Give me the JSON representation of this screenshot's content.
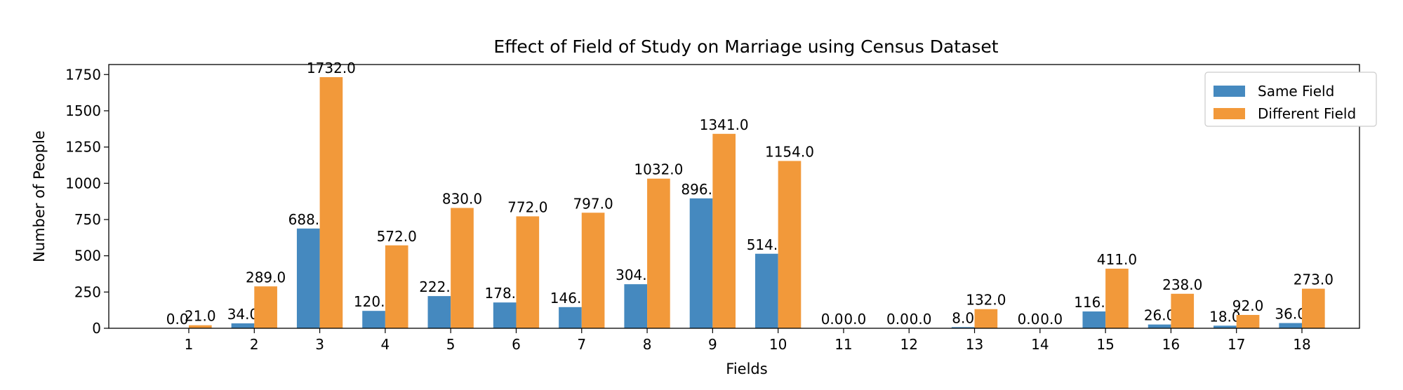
{
  "chart_data": {
    "type": "bar",
    "title": "Effect of Field of Study on Marriage using Census Dataset",
    "xlabel": "Fields",
    "ylabel": "Number of People",
    "categories": [
      "1",
      "2",
      "3",
      "4",
      "5",
      "6",
      "7",
      "8",
      "9",
      "10",
      "11",
      "12",
      "13",
      "14",
      "15",
      "16",
      "17",
      "18"
    ],
    "series": [
      {
        "name": "Same Field",
        "color": "#4589bf",
        "values": [
          0,
          34,
          688,
          120,
          222,
          178,
          146,
          304,
          896,
          514,
          0,
          0,
          8,
          0,
          116,
          26,
          18,
          36
        ],
        "labels": [
          "0.0",
          "34.0",
          "688.0",
          "120.0",
          "222.0",
          "178.0",
          "146.0",
          "304.0",
          "896.0",
          "514.0",
          "0.0",
          "0.0",
          "8.0",
          "0.0",
          "116.0",
          "26.0",
          "18.0",
          "36.0"
        ]
      },
      {
        "name": "Different Field",
        "color": "#f2993a",
        "values": [
          21,
          289,
          1732,
          572,
          830,
          772,
          797,
          1032,
          1341,
          1154,
          0,
          0,
          132,
          0,
          411,
          238,
          92,
          273
        ],
        "labels": [
          "21.0",
          "289.0",
          "1732.0",
          "572.0",
          "830.0",
          "772.0",
          "797.0",
          "1032.0",
          "1341.0",
          "1154.0",
          "0.0",
          "0.0",
          "132.0",
          "0.0",
          "411.0",
          "238.0",
          "92.0",
          "273.0"
        ]
      }
    ],
    "yticks": [
      "0",
      "250",
      "500",
      "750",
      "1000",
      "1250",
      "1500",
      "1750"
    ],
    "ylim": [
      0,
      1819
    ],
    "grid": false,
    "legend_position": "top-right"
  }
}
